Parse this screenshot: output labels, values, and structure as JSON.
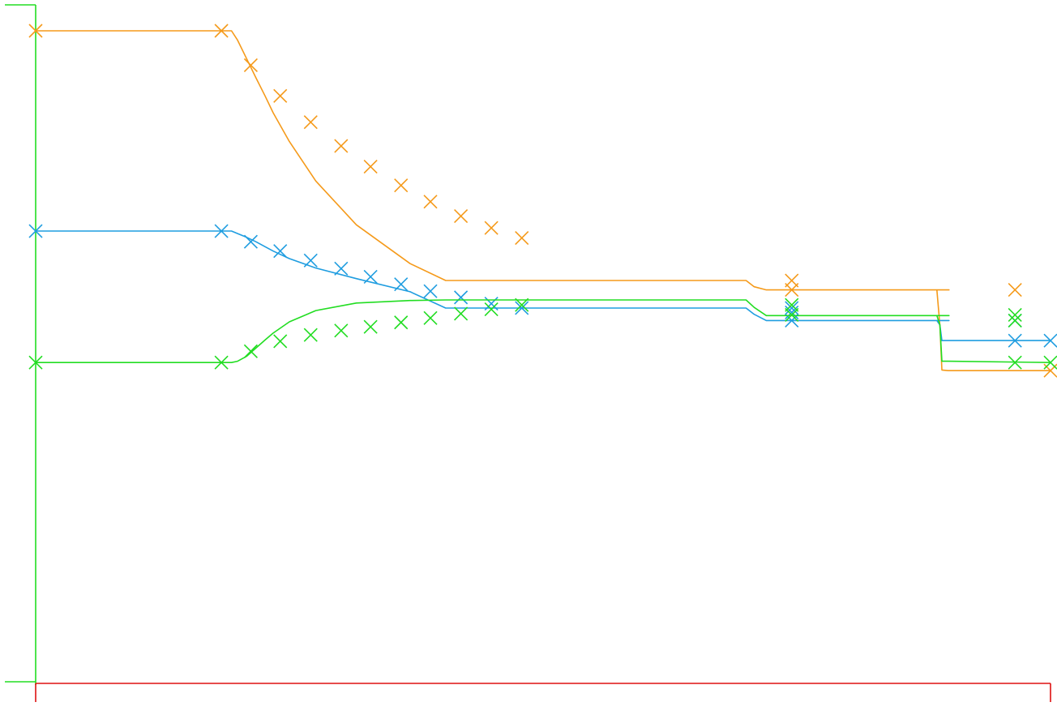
{
  "chart_data": {
    "type": "line",
    "title": "",
    "xlabel": "",
    "ylabel": "",
    "xlim": [
      0,
      1000
    ],
    "ylim": [
      0,
      1000
    ],
    "grid": false,
    "legend": "none",
    "axis_colors": {
      "y": "#22dd22",
      "x": "#dd1111"
    },
    "series": [
      {
        "color": "#f59a1a",
        "curve": [
          [
            0,
            1000
          ],
          [
            183,
            1000
          ],
          [
            193,
            1000
          ],
          [
            199,
            985
          ],
          [
            208,
            955
          ],
          [
            217,
            925
          ],
          [
            226,
            896
          ],
          [
            234,
            869
          ],
          [
            250,
            823
          ],
          [
            276,
            760
          ],
          [
            316,
            690
          ],
          [
            369,
            628
          ],
          [
            404,
            601
          ],
          [
            700,
            601
          ],
          [
            708,
            591
          ],
          [
            720,
            586
          ],
          [
            900,
            586
          ],
          [
            887,
            586
          ],
          [
            888,
            586
          ],
          [
            890,
            586
          ],
          [
            896,
            586
          ],
          [
            900,
            586
          ],
          [
            895,
            586
          ],
          [
            888,
            586
          ],
          [
            891,
            530
          ],
          [
            893,
            458
          ],
          [
            899,
            457
          ],
          [
            1000,
            457
          ]
        ],
        "markers": [
          [
            0,
            1000
          ],
          [
            183,
            1000
          ],
          [
            212,
            945
          ],
          [
            241,
            896
          ],
          [
            271,
            854
          ],
          [
            301,
            816
          ],
          [
            330,
            783
          ],
          [
            360,
            753
          ],
          [
            389,
            727
          ],
          [
            419,
            704
          ],
          [
            449,
            685
          ],
          [
            479,
            669
          ],
          [
            745,
            601
          ],
          [
            745,
            586
          ],
          [
            965,
            586
          ],
          [
            1000,
            457
          ]
        ]
      },
      {
        "color": "#1f9de0",
        "curve": [
          [
            0,
            680
          ],
          [
            183,
            680
          ],
          [
            193,
            680
          ],
          [
            199,
            676
          ],
          [
            208,
            670
          ],
          [
            217,
            663
          ],
          [
            226,
            655
          ],
          [
            234,
            648
          ],
          [
            250,
            636
          ],
          [
            276,
            621
          ],
          [
            316,
            604
          ],
          [
            369,
            583
          ],
          [
            404,
            557
          ],
          [
            700,
            557
          ],
          [
            708,
            547
          ],
          [
            720,
            537
          ],
          [
            900,
            537
          ],
          [
            888,
            537
          ],
          [
            891,
            530
          ],
          [
            893,
            505
          ],
          [
            899,
            505
          ],
          [
            1000,
            505
          ]
        ],
        "markers": [
          [
            0,
            680
          ],
          [
            183,
            680
          ],
          [
            212,
            663
          ],
          [
            241,
            648
          ],
          [
            271,
            633
          ],
          [
            301,
            620
          ],
          [
            330,
            607
          ],
          [
            360,
            595
          ],
          [
            389,
            584
          ],
          [
            419,
            574
          ],
          [
            449,
            564
          ],
          [
            479,
            557
          ],
          [
            745,
            557
          ],
          [
            745,
            550
          ],
          [
            745,
            537
          ],
          [
            965,
            537
          ],
          [
            1000,
            505
          ],
          [
            965,
            505
          ]
        ]
      },
      {
        "color": "#22dd22",
        "curve": [
          [
            0,
            470
          ],
          [
            183,
            470
          ],
          [
            193,
            470
          ],
          [
            199,
            472
          ],
          [
            208,
            480
          ],
          [
            217,
            493
          ],
          [
            226,
            506
          ],
          [
            234,
            517
          ],
          [
            250,
            535
          ],
          [
            276,
            553
          ],
          [
            316,
            565
          ],
          [
            369,
            569
          ],
          [
            404,
            570
          ],
          [
            700,
            570
          ],
          [
            708,
            558
          ],
          [
            720,
            545
          ],
          [
            900,
            545
          ],
          [
            888,
            545
          ],
          [
            891,
            530
          ],
          [
            893,
            472
          ],
          [
            899,
            472
          ],
          [
            1000,
            470
          ]
        ],
        "markers": [
          [
            0,
            470
          ],
          [
            183,
            470
          ],
          [
            212,
            488
          ],
          [
            241,
            504
          ],
          [
            271,
            514
          ],
          [
            301,
            521
          ],
          [
            330,
            527
          ],
          [
            360,
            534
          ],
          [
            389,
            541
          ],
          [
            419,
            548
          ],
          [
            449,
            555
          ],
          [
            479,
            562
          ],
          [
            745,
            562
          ],
          [
            745,
            546
          ],
          [
            965,
            537
          ],
          [
            965,
            546
          ],
          [
            1000,
            470
          ],
          [
            965,
            470
          ]
        ]
      }
    ]
  }
}
